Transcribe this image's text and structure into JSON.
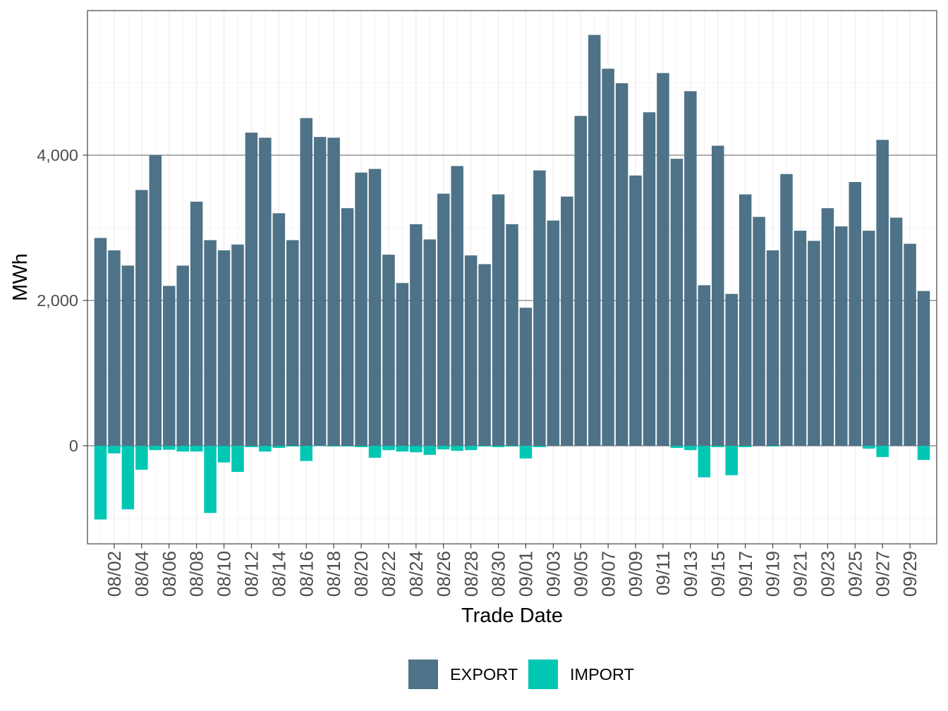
{
  "chart_data": {
    "type": "bar",
    "title": "",
    "xlabel": "Trade Date",
    "ylabel": "MWh",
    "categories": [
      "08/01",
      "08/02",
      "08/03",
      "08/04",
      "08/05",
      "08/06",
      "08/07",
      "08/08",
      "08/09",
      "08/10",
      "08/11",
      "08/12",
      "08/13",
      "08/14",
      "08/15",
      "08/16",
      "08/17",
      "08/18",
      "08/19",
      "08/20",
      "08/21",
      "08/22",
      "08/23",
      "08/24",
      "08/25",
      "08/26",
      "08/27",
      "08/28",
      "08/29",
      "08/30",
      "08/31",
      "09/01",
      "09/02",
      "09/03",
      "09/04",
      "09/05",
      "09/06",
      "09/07",
      "09/08",
      "09/09",
      "09/10",
      "09/11",
      "09/12",
      "09/13",
      "09/14",
      "09/15",
      "09/16",
      "09/17",
      "09/18",
      "09/19",
      "09/20",
      "09/21",
      "09/22",
      "09/23",
      "09/24",
      "09/25",
      "09/26",
      "09/27",
      "09/28",
      "09/29",
      "09/30"
    ],
    "series": [
      {
        "name": "EXPORT",
        "color": "#4E7287",
        "values": [
          2860,
          2690,
          2480,
          3520,
          4000,
          2200,
          2480,
          3360,
          2830,
          2690,
          2770,
          4310,
          4240,
          3200,
          2830,
          4510,
          4250,
          4240,
          3270,
          3760,
          3810,
          2630,
          2240,
          3050,
          2840,
          3470,
          3850,
          2620,
          2500,
          3460,
          3050,
          1900,
          3790,
          3100,
          3430,
          4540,
          5655,
          5190,
          4990,
          3720,
          4590,
          5130,
          3950,
          4880,
          2210,
          4130,
          2090,
          3460,
          3150,
          2690,
          3740,
          2960,
          2820,
          3270,
          3020,
          3630,
          2960,
          4210,
          3140,
          2780,
          2130
        ]
      },
      {
        "name": "IMPORT",
        "color": "#00C7B3",
        "values": [
          -1015,
          -105,
          -875,
          -330,
          -60,
          -55,
          -80,
          -80,
          -925,
          -230,
          -360,
          -20,
          -80,
          -30,
          -10,
          -210,
          -5,
          -10,
          -10,
          -20,
          -165,
          -60,
          -80,
          -90,
          -125,
          -50,
          -70,
          -60,
          -10,
          -20,
          -10,
          -175,
          -20,
          0,
          0,
          0,
          0,
          0,
          0,
          0,
          0,
          0,
          -30,
          -60,
          -435,
          -20,
          -405,
          -20,
          0,
          -10,
          0,
          0,
          0,
          0,
          0,
          0,
          -40,
          -155,
          0,
          0,
          -195
        ]
      }
    ],
    "ylim": [
      -1350,
      5990
    ],
    "yticks": [
      0,
      2000,
      4000
    ],
    "ytick_labels": [
      "0",
      "2,000",
      "4,000"
    ],
    "y_minor_ticks": [
      -1000,
      1000,
      3000,
      5000
    ],
    "xtick_labels": [
      "08/02",
      "08/04",
      "08/06",
      "08/08",
      "08/10",
      "08/12",
      "08/14",
      "08/16",
      "08/18",
      "08/20",
      "08/22",
      "08/24",
      "08/26",
      "08/28",
      "08/30",
      "09/01",
      "09/03",
      "09/05",
      "09/07",
      "09/09",
      "09/11",
      "09/13",
      "09/15",
      "09/17",
      "09/19",
      "09/21",
      "09/23",
      "09/25",
      "09/27",
      "09/29"
    ],
    "grid": true,
    "legend": {
      "position": "bottom"
    }
  }
}
